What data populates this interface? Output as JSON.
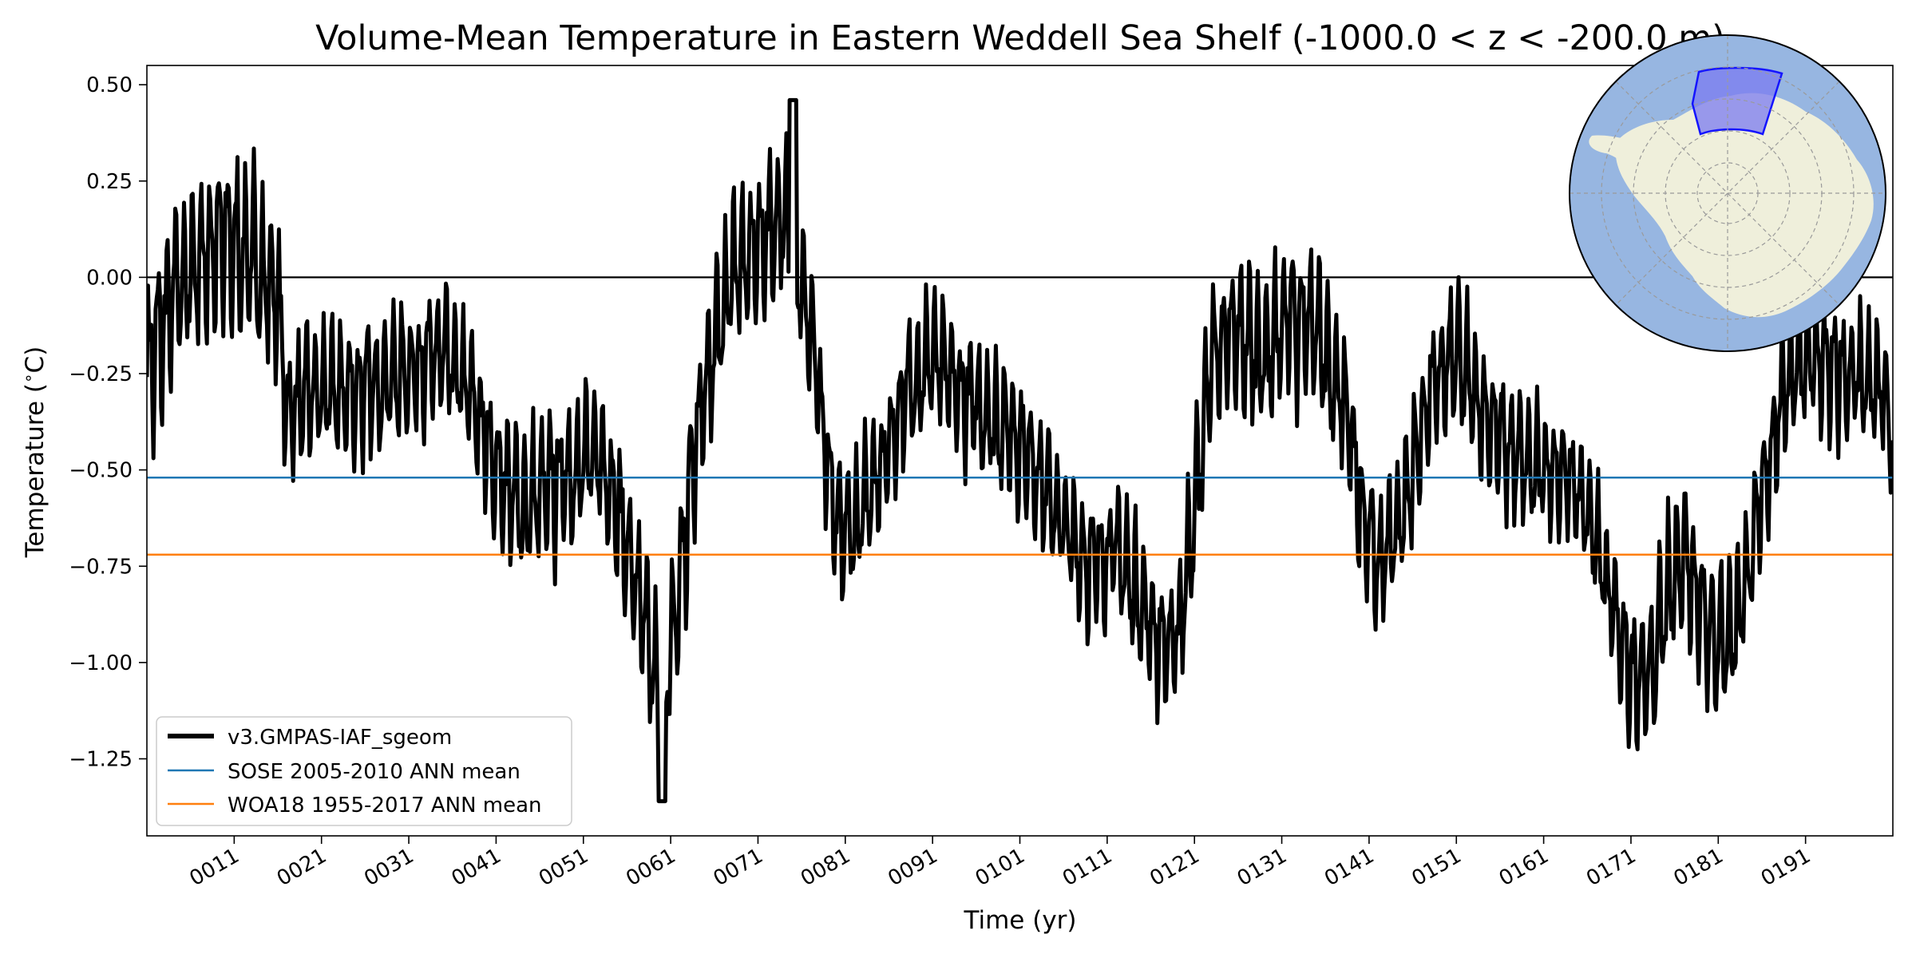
{
  "chart_data": {
    "type": "line",
    "title": "Volume-Mean Temperature in Eastern Weddell Sea Shelf (-1000.0 < z < -200.0 m)",
    "xlabel": "Time (yr)",
    "ylabel": "Temperature (°C)",
    "ylabel_base": "Temperature (",
    "ylabel_unit": "∘",
    "ylabel_end": "C)",
    "xlim": [
      1,
      201
    ],
    "ylim": [
      -1.45,
      0.55
    ],
    "yticks": [
      0.5,
      0.25,
      0.0,
      -0.25,
      -0.5,
      -0.75,
      -1.0,
      -1.25
    ],
    "ytick_labels": [
      "0.50",
      "0.25",
      "0.00",
      "−0.25",
      "−0.50",
      "−0.75",
      "−1.00",
      "−1.25"
    ],
    "xticks": [
      11,
      21,
      31,
      41,
      51,
      61,
      71,
      81,
      91,
      101,
      111,
      121,
      131,
      141,
      151,
      161,
      171,
      181,
      191
    ],
    "xtick_labels": [
      "0011",
      "0021",
      "0031",
      "0041",
      "0051",
      "0061",
      "0071",
      "0081",
      "0091",
      "0101",
      "0111",
      "0121",
      "0131",
      "0141",
      "0151",
      "0161",
      "0171",
      "0181",
      "0191"
    ],
    "zero_line": 0.0,
    "series": [
      {
        "name": "v3.GMPAS-IAF_sgeom",
        "color": "#000000",
        "kind": "model-timeseries",
        "envelope": {
          "years": [
            1,
            4,
            7,
            10,
            13,
            16,
            17,
            20,
            25,
            30,
            35,
            38,
            41,
            44,
            47,
            50,
            53,
            56,
            58,
            60,
            62,
            64,
            66,
            68,
            70,
            72,
            74,
            76,
            78,
            80,
            82,
            85,
            88,
            91,
            94,
            97,
            100,
            103,
            106,
            109,
            112,
            115,
            117,
            119,
            121,
            123,
            126,
            129,
            132,
            135,
            138,
            140,
            142,
            145,
            148,
            151,
            154,
            157,
            160,
            163,
            166,
            169,
            171,
            173,
            175,
            177,
            179,
            181,
            183,
            185,
            187,
            189,
            191,
            194,
            197,
            200,
            201
          ],
          "centers": [
            -0.25,
            -0.05,
            0.05,
            0.1,
            0.05,
            -0.05,
            -0.35,
            -0.3,
            -0.3,
            -0.25,
            -0.2,
            -0.3,
            -0.5,
            -0.6,
            -0.55,
            -0.5,
            -0.45,
            -0.7,
            -0.9,
            -1.15,
            -0.8,
            -0.4,
            -0.15,
            0.0,
            0.05,
            0.1,
            0.15,
            0.0,
            -0.3,
            -0.65,
            -0.65,
            -0.5,
            -0.3,
            -0.2,
            -0.3,
            -0.35,
            -0.4,
            -0.5,
            -0.65,
            -0.75,
            -0.7,
            -0.85,
            -0.95,
            -0.95,
            -0.6,
            -0.2,
            -0.15,
            -0.2,
            -0.1,
            -0.15,
            -0.3,
            -0.6,
            -0.75,
            -0.6,
            -0.3,
            -0.2,
            -0.35,
            -0.45,
            -0.5,
            -0.5,
            -0.6,
            -0.85,
            -1.05,
            -1.05,
            -0.85,
            -0.7,
            -0.85,
            -0.95,
            -0.9,
            -0.7,
            -0.45,
            -0.25,
            -0.2,
            -0.25,
            -0.25,
            -0.3,
            -0.45
          ],
          "amplitude": [
            0.2,
            0.2,
            0.2,
            0.2,
            0.2,
            0.18,
            0.18,
            0.15,
            0.15,
            0.15,
            0.15,
            0.15,
            0.15,
            0.17,
            0.18,
            0.17,
            0.17,
            0.17,
            0.17,
            0.18,
            0.2,
            0.2,
            0.18,
            0.18,
            0.18,
            0.18,
            0.2,
            0.18,
            0.15,
            0.15,
            0.15,
            0.15,
            0.15,
            0.15,
            0.15,
            0.15,
            0.15,
            0.15,
            0.15,
            0.15,
            0.15,
            0.15,
            0.15,
            0.15,
            0.17,
            0.17,
            0.17,
            0.18,
            0.18,
            0.18,
            0.18,
            0.17,
            0.17,
            0.15,
            0.15,
            0.17,
            0.15,
            0.15,
            0.15,
            0.15,
            0.15,
            0.15,
            0.17,
            0.17,
            0.17,
            0.17,
            0.17,
            0.17,
            0.17,
            0.15,
            0.15,
            0.15,
            0.15,
            0.15,
            0.15,
            0.15,
            0.15
          ]
        },
        "extremes": {
          "max": 0.46,
          "max_year": 75,
          "min": -1.36,
          "min_year": 60
        }
      },
      {
        "name": "SOSE 2005-2010 ANN mean",
        "color": "#1f77b4",
        "kind": "reference",
        "value": -0.52
      },
      {
        "name": "WOA18 1955-2017 ANN mean",
        "color": "#ff7f0e",
        "kind": "reference",
        "value": -0.72
      }
    ],
    "legend": {
      "placement": "lower-left",
      "entries": [
        "v3.GMPAS-IAF_sgeom",
        "SOSE 2005-2010 ANN mean",
        "WOA18 1955-2017 ANN mean"
      ]
    },
    "inset_map": {
      "kind": "south-polar-stereographic",
      "placement": "top-right",
      "ocean_color": "#97b6e1",
      "land_color": "#efefdb",
      "region_color": "#7b7bf0",
      "region_edge_color": "#1414ff"
    }
  }
}
